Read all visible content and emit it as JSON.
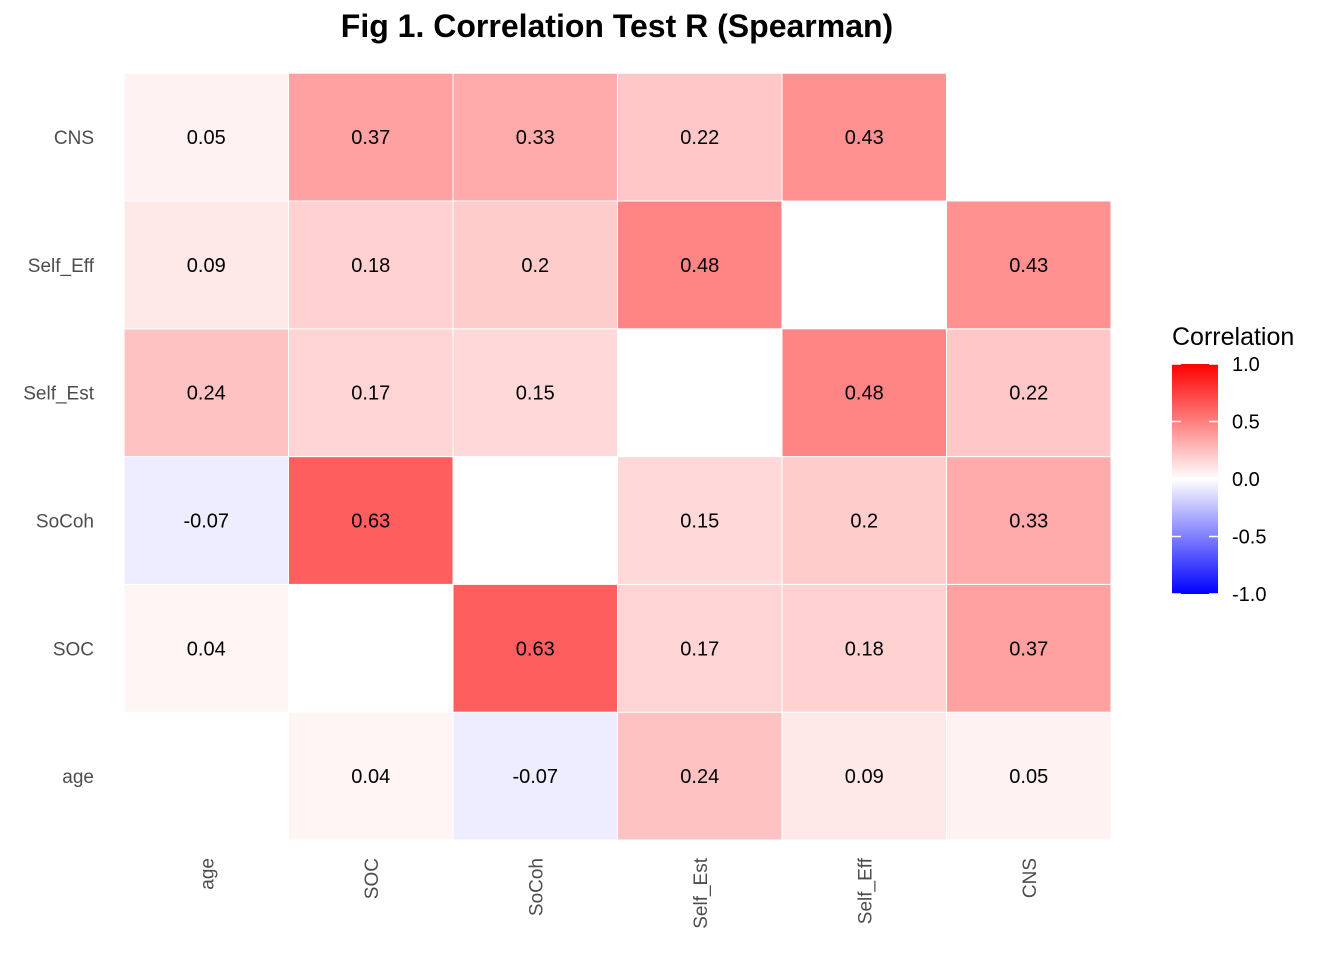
{
  "chart_data": {
    "type": "heatmap",
    "title": "Fig 1. Correlation Test R (Spearman)",
    "xlabel": "",
    "ylabel": "",
    "x_categories": [
      "age",
      "SOC",
      "SoCoh",
      "Self_Est",
      "Self_Eff",
      "CNS"
    ],
    "y_categories": [
      "age",
      "SOC",
      "SoCoh",
      "Self_Est",
      "Self_Eff",
      "CNS"
    ],
    "values": [
      [
        null,
        0.04,
        -0.07,
        0.24,
        0.09,
        0.05
      ],
      [
        0.04,
        null,
        0.63,
        0.17,
        0.18,
        0.37
      ],
      [
        -0.07,
        0.63,
        null,
        0.15,
        0.2,
        0.33
      ],
      [
        0.24,
        0.17,
        0.15,
        null,
        0.48,
        0.22
      ],
      [
        0.09,
        0.18,
        0.2,
        0.48,
        null,
        0.43
      ],
      [
        0.05,
        0.37,
        0.33,
        0.22,
        0.43,
        null
      ]
    ],
    "labels": [
      [
        "",
        "0.04",
        "-0.07",
        "0.24",
        "0.09",
        "0.05"
      ],
      [
        "0.04",
        "",
        "0.63",
        "0.17",
        "0.18",
        "0.37"
      ],
      [
        "-0.07",
        "0.63",
        "",
        "0.15",
        "0.2",
        "0.33"
      ],
      [
        "0.24",
        "0.17",
        "0.15",
        "",
        "0.48",
        "0.22"
      ],
      [
        "0.09",
        "0.18",
        "0.2",
        "0.48",
        "",
        "0.43"
      ],
      [
        "0.05",
        "0.37",
        "0.33",
        "0.22",
        "0.43",
        ""
      ]
    ],
    "color_scale": {
      "low": "#0000ff",
      "mid": "#ffffff",
      "high": "#ff0000",
      "limits": [
        -1,
        1
      ]
    },
    "legend": {
      "title": "Correlation",
      "ticks": [
        1.0,
        0.5,
        0.0,
        -0.5,
        -1.0
      ],
      "tick_labels": [
        "1.0",
        "0.5",
        "0.0",
        "-0.5",
        "-1.0"
      ],
      "position": "right"
    },
    "grid": false
  }
}
